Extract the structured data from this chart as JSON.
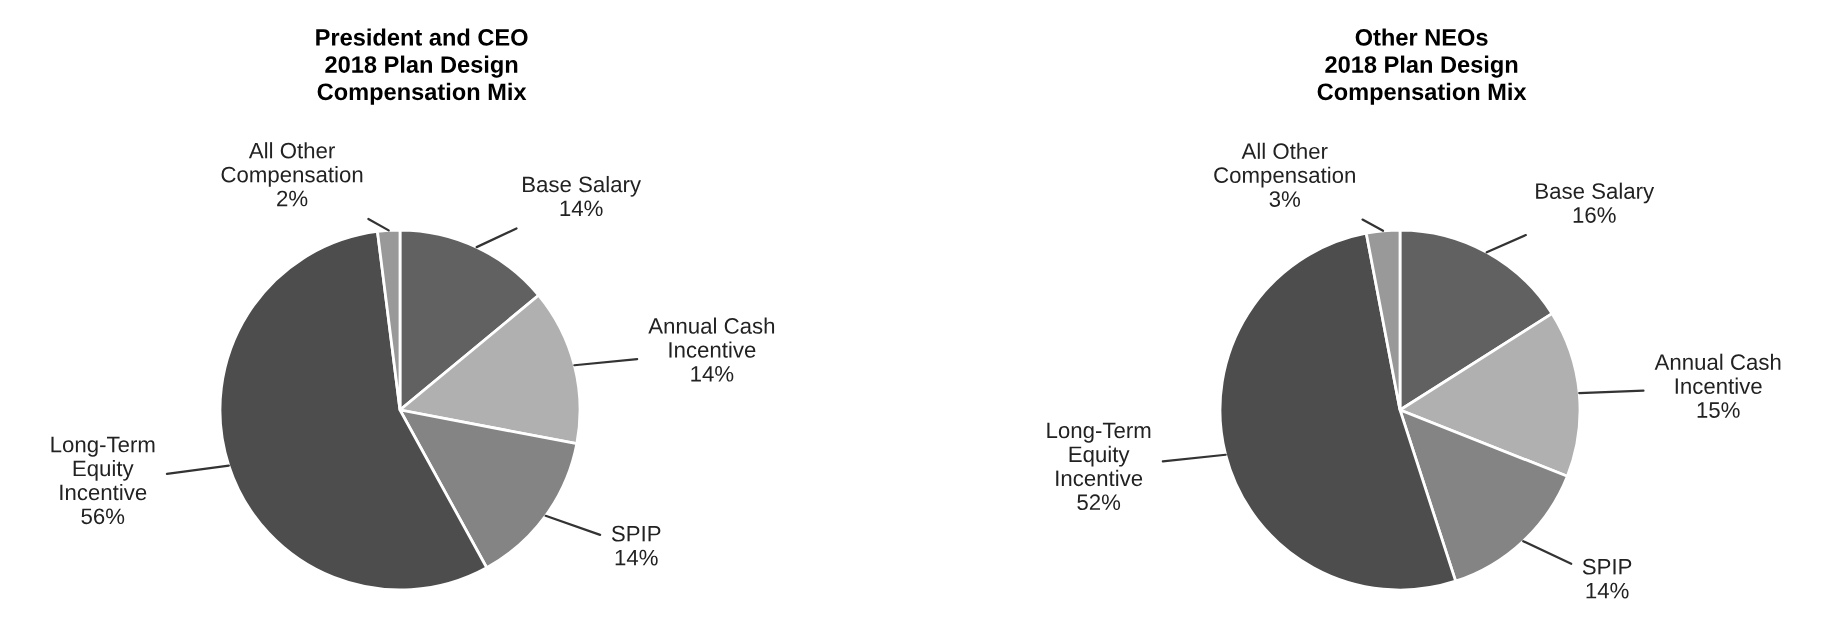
{
  "chart_data": [
    {
      "type": "pie",
      "title": "President and CEO\n2018 Plan Design\nCompensation Mix",
      "categories": [
        "Base Salary",
        "Annual Cash\nIncentive",
        "SPIP",
        "Long-Term\nEquity\nIncentive",
        "All Other\nCompensation"
      ],
      "values": [
        14,
        14,
        14,
        56,
        2
      ],
      "value_labels": [
        "14%",
        "14%",
        "14%",
        "56%",
        "2%"
      ],
      "colors": [
        "#616161",
        "#b0b0b0",
        "#848484",
        "#4d4d4d",
        "#999999"
      ],
      "legend": false
    },
    {
      "type": "pie",
      "title": "Other NEOs\n2018 Plan Design\nCompensation Mix",
      "categories": [
        "Base Salary",
        "Annual Cash\nIncentive",
        "SPIP",
        "Long-Term\nEquity\nIncentive",
        "All Other\nCompensation"
      ],
      "values": [
        16,
        15,
        14,
        52,
        3
      ],
      "value_labels": [
        "16%",
        "15%",
        "14%",
        "52%",
        "3%"
      ],
      "colors": [
        "#616161",
        "#b0b0b0",
        "#848484",
        "#4d4d4d",
        "#999999"
      ],
      "legend": false
    }
  ]
}
